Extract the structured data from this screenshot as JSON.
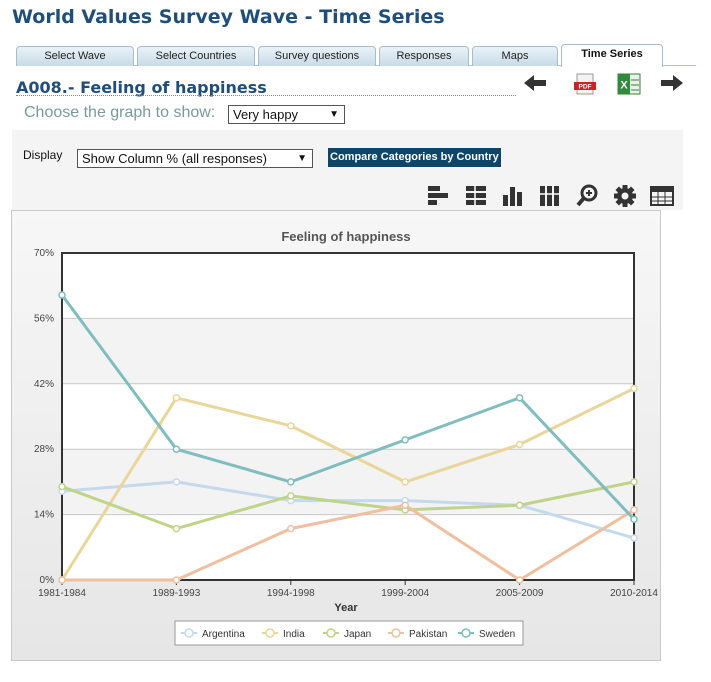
{
  "page": {
    "title": "World Values Survey Wave - Time Series",
    "tabs": [
      "Select Wave",
      "Select Countries",
      "Survey questions",
      "Responses",
      "Maps",
      "Time Series"
    ],
    "active_tab": "Time Series",
    "question_title": "A008.- Feeling of happiness",
    "choose_label": "Choose the graph to show:",
    "choose_value": "Very happy",
    "display_label": "Display",
    "display_value": "Show Column % (all responses)",
    "compare_button": "Compare Categories by Country",
    "icons": [
      "back-arrow-icon",
      "pdf-icon",
      "excel-icon",
      "forward-arrow-icon",
      "horizontal-bar-icon",
      "stacked-horizontal-bar-icon",
      "column-chart-icon",
      "stacked-column-icon",
      "zoom-icon",
      "settings-gear-icon",
      "table-icon"
    ]
  },
  "chart_data": {
    "type": "line",
    "title": "Feeling of happiness",
    "xlabel": "Year",
    "ylabel": "",
    "categories": [
      "1981-1984",
      "1989-1993",
      "1994-1998",
      "1999-2004",
      "2005-2009",
      "2010-2014"
    ],
    "ylim": [
      0,
      70
    ],
    "yticks": [
      "0%",
      "14%",
      "28%",
      "42%",
      "56%",
      "70%"
    ],
    "grid": true,
    "legend_position": "bottom",
    "series": [
      {
        "name": "Argentina",
        "color": "#c5d9ee",
        "values": [
          19,
          21,
          17,
          17,
          16,
          9
        ]
      },
      {
        "name": "India",
        "color": "#ead59a",
        "values": [
          0,
          39,
          33,
          21,
          29,
          41
        ]
      },
      {
        "name": "Japan",
        "color": "#bfd489",
        "values": [
          20,
          11,
          18,
          15,
          16,
          21
        ]
      },
      {
        "name": "Pakistan",
        "color": "#efbf9f",
        "values": [
          0,
          0,
          11,
          16,
          0,
          15
        ]
      },
      {
        "name": "Sweden",
        "color": "#7fbdbf",
        "values": [
          61,
          28,
          21,
          30,
          39,
          13
        ]
      }
    ]
  }
}
